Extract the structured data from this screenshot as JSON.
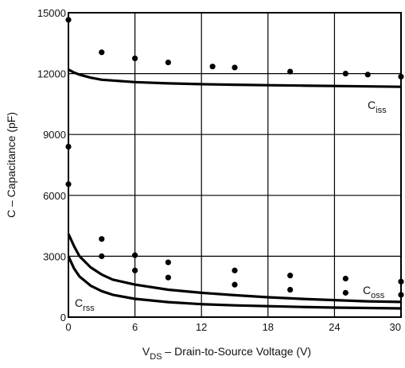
{
  "chart_data": {
    "type": "line",
    "title": "",
    "xlabel": {
      "main": "V",
      "sub": "DS",
      "rest": " – Drain-to-Source Voltage (V)"
    },
    "ylabel": "C – Capacitance (pF)",
    "xlim": [
      0,
      30
    ],
    "ylim": [
      0,
      15000
    ],
    "xticks": [
      "0",
      "6",
      "12",
      "18",
      "24",
      "30"
    ],
    "yticks": [
      "0",
      "3000",
      "6000",
      "9000",
      "12000",
      "15000"
    ],
    "grid": true,
    "series": [
      {
        "name": {
          "main": "C",
          "sub": "iss"
        },
        "x": [
          0,
          0.5,
          1,
          2,
          3,
          6,
          9,
          12,
          15,
          18,
          21,
          24,
          27,
          30
        ],
        "values": [
          12200,
          12050,
          11950,
          11800,
          11700,
          11580,
          11520,
          11480,
          11450,
          11430,
          11410,
          11390,
          11370,
          11350
        ]
      },
      {
        "name": {
          "main": "C",
          "sub": "oss"
        },
        "x": [
          0,
          0.5,
          1,
          2,
          3,
          4,
          6,
          9,
          12,
          15,
          18,
          21,
          24,
          27,
          30
        ],
        "values": [
          4100,
          3500,
          3000,
          2450,
          2100,
          1850,
          1600,
          1350,
          1200,
          1080,
          980,
          900,
          840,
          780,
          750
        ]
      },
      {
        "name": {
          "main": "C",
          "sub": "rss"
        },
        "x": [
          0,
          0.5,
          1,
          2,
          3,
          4,
          6,
          9,
          12,
          15,
          18,
          21,
          24,
          27,
          30
        ],
        "values": [
          3000,
          2400,
          2000,
          1550,
          1280,
          1100,
          900,
          740,
          640,
          580,
          540,
          500,
          470,
          450,
          430
        ]
      }
    ],
    "scatter_points": {
      "x": [
        0,
        0,
        0,
        3,
        6,
        9,
        13,
        15,
        20,
        25,
        27,
        30,
        3,
        3,
        6,
        6,
        9,
        9,
        15,
        15,
        20,
        20,
        25,
        25,
        30,
        30
      ],
      "values": [
        14650,
        8400,
        6550,
        13050,
        12750,
        12550,
        12350,
        12300,
        12100,
        12000,
        11950,
        11850,
        3850,
        3000,
        3050,
        2300,
        2700,
        1950,
        2300,
        1600,
        2050,
        1350,
        1900,
        1200,
        1750,
        1100
      ]
    }
  }
}
